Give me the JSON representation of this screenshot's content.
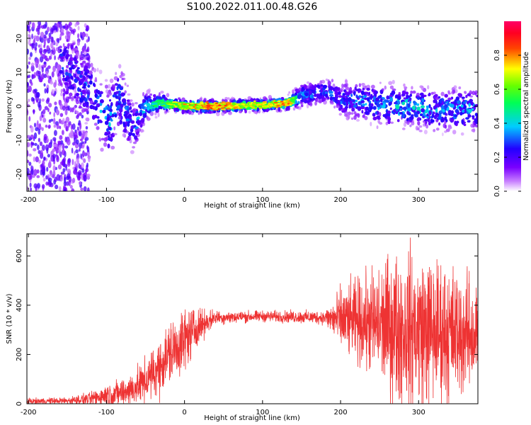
{
  "figure_title": "S100.2022.011.00.48.G26",
  "colors": {
    "snr_line": "#ee3333",
    "background": "#ffffff",
    "axis": "#000000"
  },
  "chart_data": [
    {
      "type": "heatmap",
      "name": "spectrogram",
      "title": "S100.2022.011.00.48.G26",
      "xlabel": "Height of straight line (km)",
      "ylabel": "Frequency (Hz)",
      "xlim": [
        -202,
        376
      ],
      "ylim": [
        -25,
        25
      ],
      "xticks": [
        -200,
        -100,
        0,
        100,
        200,
        300
      ],
      "xtick_labels": [
        "-200",
        "-100",
        "0",
        "100",
        "200",
        "300"
      ],
      "yticks": [
        -20,
        -10,
        0,
        10,
        20
      ],
      "ytick_labels": [
        "-20",
        "-10",
        "0",
        "10",
        "20"
      ],
      "grid": false,
      "colorbar": {
        "label": "Normalized spectral amplitude",
        "range": [
          0,
          1
        ],
        "ticks": [
          0.0,
          0.2,
          0.4,
          0.6,
          0.8
        ],
        "tick_labels": [
          "0.0",
          "0.2",
          "0.4",
          "0.6",
          "0.8"
        ],
        "colormap": "rainbow (white-violet-blue-cyan-green-yellow-red-magenta)"
      },
      "frequency_track": [
        {
          "x": -150,
          "f": 12,
          "amp": 0.3,
          "spread": 7
        },
        {
          "x": -135,
          "f": 7,
          "amp": 0.35,
          "spread": 6
        },
        {
          "x": -120,
          "f": 4,
          "amp": 0.35,
          "spread": 5
        },
        {
          "x": -105,
          "f": -2,
          "amp": 0.4,
          "spread": 6
        },
        {
          "x": -95,
          "f": -5,
          "amp": 0.4,
          "spread": 6
        },
        {
          "x": -85,
          "f": 3,
          "amp": 0.35,
          "spread": 6
        },
        {
          "x": -75,
          "f": -2,
          "amp": 0.35,
          "spread": 5
        },
        {
          "x": -65,
          "f": -6,
          "amp": 0.35,
          "spread": 4
        },
        {
          "x": -50,
          "f": 0,
          "amp": 0.45,
          "spread": 2.5
        },
        {
          "x": -30,
          "f": 1,
          "amp": 0.55,
          "spread": 1.5
        },
        {
          "x": 0,
          "f": 0,
          "amp": 0.75,
          "spread": 1
        },
        {
          "x": 40,
          "f": 0,
          "amp": 0.85,
          "spread": 1
        },
        {
          "x": 80,
          "f": 0.2,
          "amp": 0.7,
          "spread": 1
        },
        {
          "x": 110,
          "f": 0.5,
          "amp": 0.7,
          "spread": 1
        },
        {
          "x": 130,
          "f": 0.8,
          "amp": 0.85,
          "spread": 1
        },
        {
          "x": 150,
          "f": 3,
          "amp": 0.4,
          "spread": 2
        },
        {
          "x": 170,
          "f": 4,
          "amp": 0.35,
          "spread": 2
        },
        {
          "x": 185,
          "f": 4.5,
          "amp": 0.35,
          "spread": 2
        },
        {
          "x": 200,
          "f": 2,
          "amp": 0.35,
          "spread": 3
        },
        {
          "x": 240,
          "f": 1,
          "amp": 0.4,
          "spread": 3.5
        },
        {
          "x": 280,
          "f": 0,
          "amp": 0.45,
          "spread": 3.5
        },
        {
          "x": 320,
          "f": -1,
          "amp": 0.4,
          "spread": 3.5
        },
        {
          "x": 376,
          "f": -1,
          "amp": 0.4,
          "spread": 3.5
        }
      ]
    },
    {
      "type": "line",
      "name": "snr",
      "title": "",
      "xlabel": "Height of straight line (km)",
      "ylabel": "SNR (10 * v/v)",
      "xlim": [
        -202,
        376
      ],
      "ylim": [
        0,
        690
      ],
      "xticks": [
        -200,
        -100,
        0,
        100,
        200,
        300
      ],
      "xtick_labels": [
        "-200",
        "-100",
        "0",
        "100",
        "200",
        "300"
      ],
      "yticks": [
        0,
        200,
        400,
        600
      ],
      "ytick_labels": [
        "0",
        "200",
        "400",
        "600"
      ],
      "grid": false,
      "series": [
        {
          "color": "#ee3333",
          "envelope": [
            {
              "x": -202,
              "mean": 10,
              "noise": 6
            },
            {
              "x": -150,
              "mean": 12,
              "noise": 8
            },
            {
              "x": -120,
              "mean": 20,
              "noise": 14
            },
            {
              "x": -100,
              "mean": 35,
              "noise": 25
            },
            {
              "x": -80,
              "mean": 45,
              "noise": 30
            },
            {
              "x": -60,
              "mean": 70,
              "noise": 40
            },
            {
              "x": -40,
              "mean": 120,
              "noise": 55
            },
            {
              "x": -20,
              "mean": 200,
              "noise": 70
            },
            {
              "x": 0,
              "mean": 260,
              "noise": 70
            },
            {
              "x": 20,
              "mean": 320,
              "noise": 35
            },
            {
              "x": 40,
              "mean": 350,
              "noise": 15
            },
            {
              "x": 100,
              "mean": 355,
              "noise": 12
            },
            {
              "x": 180,
              "mean": 350,
              "noise": 15
            },
            {
              "x": 200,
              "mean": 340,
              "noise": 70
            },
            {
              "x": 230,
              "mean": 330,
              "noise": 100
            },
            {
              "x": 270,
              "mean": 310,
              "noise": 160
            },
            {
              "x": 300,
              "mean": 300,
              "noise": 170
            },
            {
              "x": 340,
              "mean": 290,
              "noise": 150
            },
            {
              "x": 376,
              "mean": 280,
              "noise": 110
            }
          ]
        }
      ]
    }
  ]
}
